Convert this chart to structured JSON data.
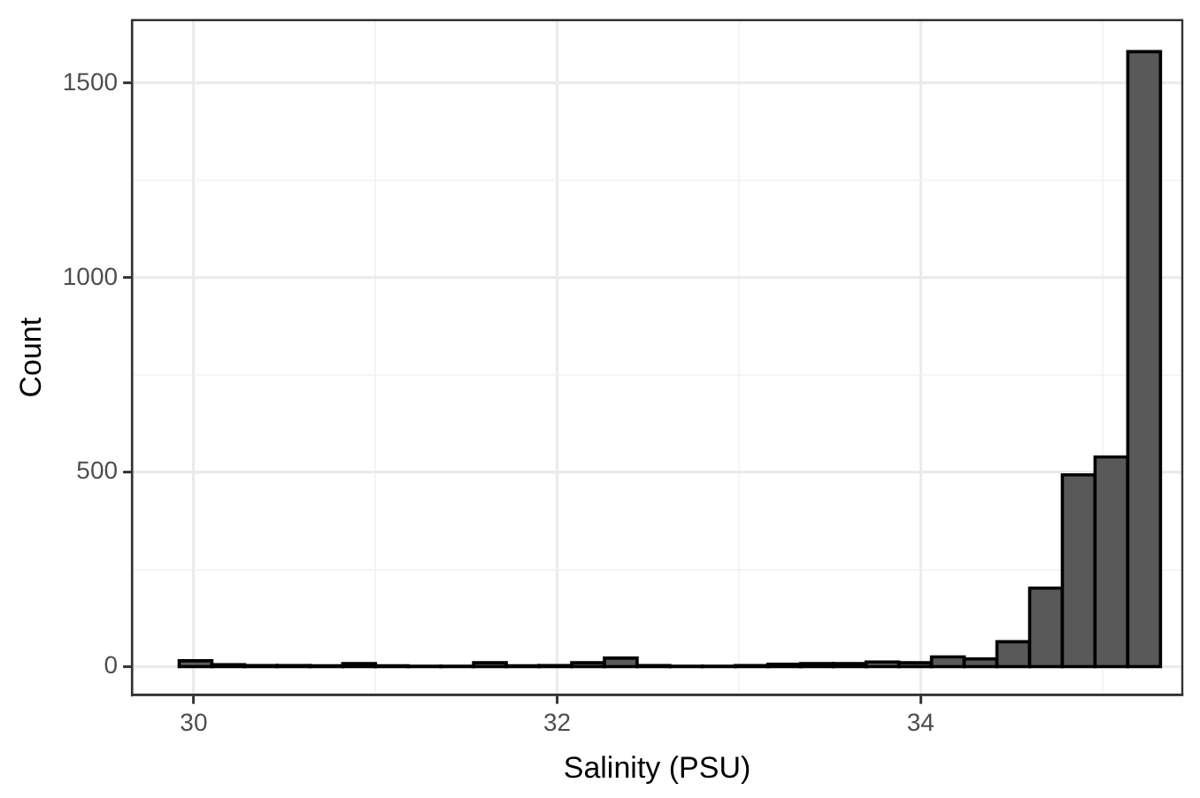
{
  "chart_data": {
    "type": "histogram",
    "xlabel": "Salinity (PSU)",
    "ylabel": "Count",
    "bins": [
      29.92,
      30.1,
      30.28,
      30.46,
      30.64,
      30.82,
      31.0,
      31.18,
      31.36,
      31.54,
      31.72,
      31.9,
      32.08,
      32.26,
      32.44,
      32.62,
      32.8,
      32.98,
      33.16,
      33.34,
      33.52,
      33.7,
      33.88,
      34.06,
      34.24,
      34.42,
      34.6,
      34.78,
      34.96,
      35.14,
      35.32
    ],
    "values": [
      15,
      5,
      3,
      3,
      2,
      8,
      2,
      1,
      1,
      10,
      2,
      3,
      10,
      22,
      3,
      1,
      1,
      3,
      6,
      8,
      8,
      12,
      10,
      25,
      20,
      64,
      202,
      493,
      539,
      1581
    ],
    "color": "#595959",
    "xlim": [
      29.66,
      35.44
    ],
    "ylim": [
      -73,
      1662
    ],
    "xticks": [
      30,
      {
        "value": 31,
        "label": null
      },
      32,
      {
        "value": 33,
        "label": null
      },
      34,
      {
        "value": 35,
        "label": null
      }
    ],
    "yticks": [
      0,
      {
        "value": 250,
        "label": null
      },
      500,
      {
        "value": 750,
        "label": null
      },
      1000,
      {
        "value": 1250,
        "label": null
      },
      1500
    ],
    "grid": true
  }
}
